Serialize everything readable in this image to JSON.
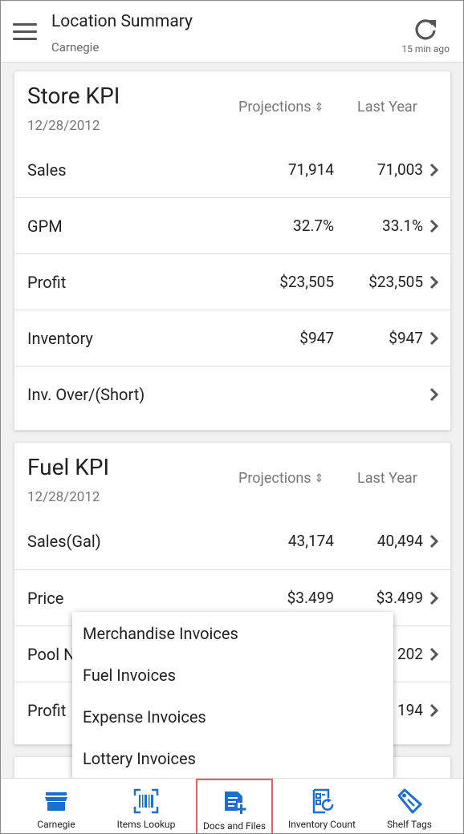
{
  "header": {
    "title": "Location Summary",
    "subtitle": "Carnegie",
    "refresh_time": "15 min ago"
  },
  "store_kpi": {
    "title": "Store KPI",
    "date": "12/28/2012",
    "col_projections": "Projections",
    "col_last_year": "Last Year",
    "rows": [
      {
        "label": "Sales",
        "projections": "71,914",
        "last_year": "71,003"
      },
      {
        "label": "GPM",
        "projections": "32.7%",
        "last_year": "33.1%"
      },
      {
        "label": "Profit",
        "projections": "$23,505",
        "last_year": "$23,505"
      },
      {
        "label": "Inventory",
        "projections": "$947",
        "last_year": "$947"
      },
      {
        "label": "Inv. Over/(Short)",
        "projections": "",
        "last_year": ""
      }
    ]
  },
  "fuel_kpi": {
    "title": "Fuel KPI",
    "date": "12/28/2012",
    "col_projections": "Projections",
    "col_last_year": "Last Year",
    "rows": [
      {
        "label": "Sales(Gal)",
        "projections": "43,174",
        "last_year": "40,494"
      },
      {
        "label": "Price",
        "projections": "$3.499",
        "last_year": "$3.499"
      },
      {
        "label": "Pool N",
        "projections": "",
        "last_year": "202"
      },
      {
        "label": "Profit",
        "projections": "",
        "last_year": "194"
      }
    ]
  },
  "popup_menu": {
    "items": [
      "Merchandise Invoices",
      "Fuel Invoices",
      "Expense Invoices",
      "Lottery Invoices"
    ]
  },
  "bottom_nav": {
    "items": [
      {
        "label": "Carnegie",
        "icon": "store-icon"
      },
      {
        "label": "Items Lookup",
        "icon": "barcode-scan-icon"
      },
      {
        "label": "Docs and Files",
        "icon": "document-add-icon"
      },
      {
        "label": "Inventory Count",
        "icon": "inventory-count-icon"
      },
      {
        "label": "Shelf Tags",
        "icon": "tag-icon"
      }
    ],
    "active_index": 2
  },
  "colors": {
    "accent_blue": "#1a6fd0",
    "active_outline": "#e06060"
  }
}
